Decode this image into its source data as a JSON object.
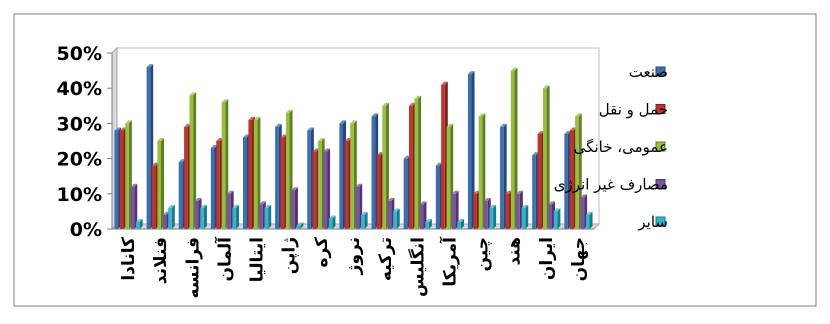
{
  "chart_data": {
    "type": "bar",
    "categories": [
      "کانادا",
      "فنلاند",
      "فرانسه",
      "آلمان",
      "ایتالیا",
      "ژاپن",
      "کره",
      "نروژ",
      "ترکیه",
      "انگلیس",
      "آمریکا",
      "چین",
      "هند",
      "ایران",
      "جهان"
    ],
    "series": [
      {
        "name": "صنعت",
        "color": "#3a6fb5",
        "values": [
          28,
          46,
          19,
          23,
          26,
          29,
          28,
          30,
          32,
          20,
          18,
          44,
          29,
          21,
          27
        ]
      },
      {
        "name": "حمل و نقل",
        "color": "#c2312c",
        "values": [
          28,
          18,
          29,
          25,
          31,
          26,
          22,
          25,
          21,
          35,
          41,
          10,
          10,
          27,
          28
        ]
      },
      {
        "name": "عمومی، خانگی",
        "color": "#93c23a",
        "values": [
          30,
          25,
          38,
          36,
          31,
          33,
          25,
          30,
          35,
          37,
          29,
          32,
          45,
          40,
          32
        ]
      },
      {
        "name": "مصارف غیر انرژی",
        "color": "#7d52a5",
        "values": [
          12,
          4,
          8,
          10,
          7,
          11,
          22,
          12,
          8,
          7,
          10,
          8,
          10,
          7,
          9
        ]
      },
      {
        "name": "سایر",
        "color": "#2fb6d0",
        "values": [
          2,
          6,
          6,
          6,
          6,
          1,
          3,
          4,
          5,
          2,
          2,
          6,
          6,
          5,
          4
        ]
      }
    ],
    "yticks": [
      "0%",
      "10%",
      "20%",
      "30%",
      "40%",
      "50%"
    ],
    "ylim": [
      0,
      50
    ],
    "legend": "right",
    "grid": false
  }
}
